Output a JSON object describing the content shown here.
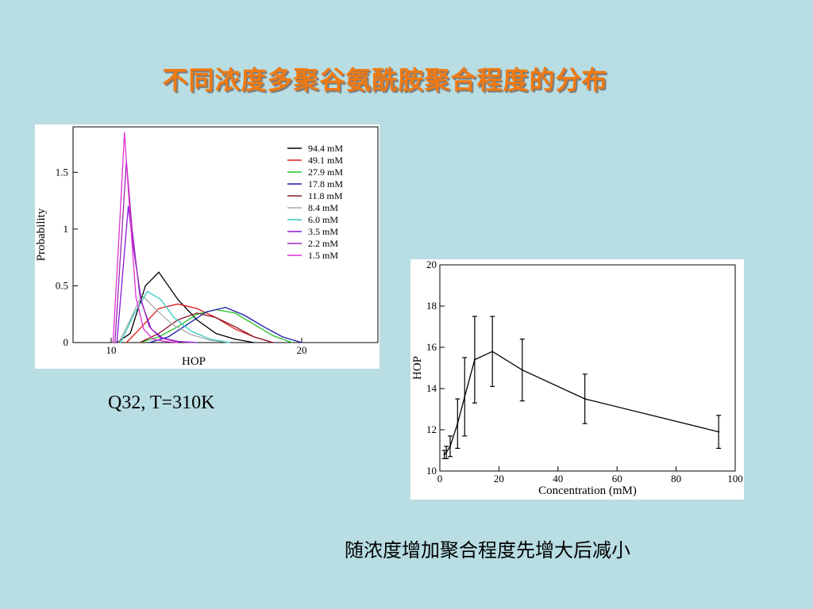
{
  "slide": {
    "title": "不同浓度多聚谷氨酰胺聚合程度的分布",
    "caption_left": "Q32, T=310K",
    "caption_right": "随浓度增加聚合程度先增大后减小"
  },
  "colors": {
    "background": "#b8dde2",
    "title": "#f07a12"
  },
  "chart_data": [
    {
      "type": "line",
      "xlabel": "HOP",
      "ylabel": "Probability",
      "xlim": [
        8,
        24
      ],
      "ylim": [
        0,
        1.9
      ],
      "x_ticks": [
        10,
        20
      ],
      "y_ticks": [
        0,
        0.5,
        1,
        1.5
      ],
      "y_tick_labels": [
        "0",
        "0.5",
        "1",
        "1.5"
      ],
      "legend_position": "top-right",
      "series": [
        {
          "name": "94.4 mM",
          "color": "#000000",
          "x": [
            10.3,
            11,
            11.8,
            12.5,
            13.5,
            14.5,
            15.5,
            16.5,
            17.5
          ],
          "y": [
            0,
            0.08,
            0.5,
            0.62,
            0.38,
            0.2,
            0.08,
            0.03,
            0
          ]
        },
        {
          "name": "49.1 mM",
          "color": "#e0181b",
          "x": [
            10.8,
            11.5,
            12.5,
            13.5,
            14.5,
            15.5,
            16.5,
            17.5,
            18.5
          ],
          "y": [
            0,
            0.12,
            0.3,
            0.34,
            0.3,
            0.22,
            0.12,
            0.05,
            0
          ]
        },
        {
          "name": "27.9 mM",
          "color": "#22c022",
          "x": [
            11.5,
            12.5,
            13.5,
            14.5,
            15.5,
            16.5,
            17.5,
            18.5,
            19.5
          ],
          "y": [
            0,
            0.05,
            0.14,
            0.25,
            0.29,
            0.26,
            0.16,
            0.06,
            0
          ]
        },
        {
          "name": "17.8 mM",
          "color": "#1a1aa8",
          "x": [
            12,
            13,
            14,
            15,
            16,
            17,
            18,
            19,
            20
          ],
          "y": [
            0,
            0.05,
            0.16,
            0.27,
            0.31,
            0.24,
            0.14,
            0.05,
            0
          ]
        },
        {
          "name": "11.8 mM",
          "color": "#8b1a2a",
          "x": [
            11.5,
            12.5,
            13.5,
            14.5,
            15.5,
            16.5,
            17.5,
            18.5
          ],
          "y": [
            0,
            0.08,
            0.2,
            0.26,
            0.22,
            0.14,
            0.05,
            0
          ]
        },
        {
          "name": "8.4 mM",
          "color": "#a8a8a8",
          "x": [
            10.4,
            11,
            11.6,
            12.3,
            13.2,
            14.2,
            15.2,
            16.2
          ],
          "y": [
            0,
            0.2,
            0.42,
            0.3,
            0.16,
            0.07,
            0.02,
            0
          ]
        },
        {
          "name": "6.0 mM",
          "color": "#35c8c0",
          "x": [
            10.5,
            11.2,
            11.9,
            12.6,
            13.3,
            14.2,
            15.2,
            16.2
          ],
          "y": [
            0,
            0.25,
            0.45,
            0.38,
            0.22,
            0.1,
            0.03,
            0
          ]
        },
        {
          "name": "3.5 mM",
          "color": "#8a1ae0",
          "x": [
            10.3,
            10.6,
            10.9,
            11.2,
            11.6,
            12.1,
            12.7,
            13.5,
            14.5
          ],
          "y": [
            0,
            0.6,
            1.2,
            0.8,
            0.35,
            0.12,
            0.04,
            0.01,
            0
          ]
        },
        {
          "name": "2.2 mM",
          "color": "#9a28b8",
          "x": [
            10.2,
            10.5,
            10.8,
            11.1,
            11.5,
            12,
            12.6,
            13.4,
            14.2
          ],
          "y": [
            0,
            0.8,
            1.6,
            1.0,
            0.42,
            0.14,
            0.04,
            0.01,
            0
          ]
        },
        {
          "name": "1.5 mM",
          "color": "#e030d0",
          "x": [
            10.1,
            10.4,
            10.7,
            11.0,
            11.3,
            11.7,
            12.2,
            12.8,
            13.5
          ],
          "y": [
            0,
            0.9,
            1.85,
            1.1,
            0.4,
            0.12,
            0.03,
            0.01,
            0
          ]
        }
      ]
    },
    {
      "type": "line",
      "xlabel": "Concentration (mM)",
      "ylabel": "HOP",
      "xlim": [
        0,
        100
      ],
      "ylim": [
        10,
        20
      ],
      "x_ticks": [
        0,
        20,
        40,
        60,
        80,
        100
      ],
      "y_ticks": [
        10,
        12,
        14,
        16,
        18,
        20
      ],
      "series": [
        {
          "color": "#000000",
          "x": [
            1.5,
            2.2,
            3.5,
            6.0,
            8.4,
            11.8,
            17.8,
            27.9,
            49.1,
            94.4
          ],
          "y": [
            10.8,
            10.9,
            11.2,
            12.3,
            13.6,
            15.4,
            15.8,
            14.9,
            13.5,
            11.9
          ],
          "err": [
            0.2,
            0.3,
            0.5,
            1.2,
            1.9,
            2.1,
            1.7,
            1.5,
            1.2,
            0.8
          ]
        }
      ]
    }
  ]
}
